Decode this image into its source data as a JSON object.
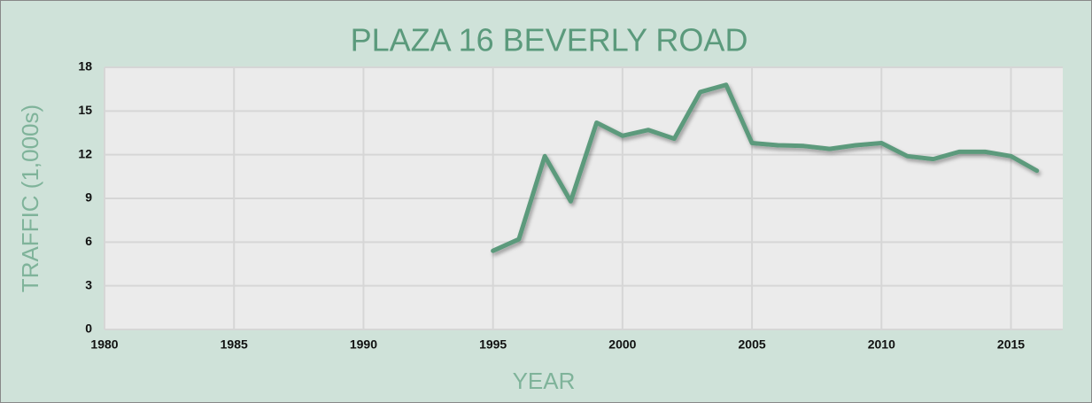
{
  "chart_data": {
    "type": "line",
    "title": "PLAZA 16 BEVERLY ROAD",
    "xlabel": "YEAR",
    "ylabel": "TRAFFIC (1,000s)",
    "x": [
      1995,
      1996,
      1997,
      1998,
      1999,
      2000,
      2001,
      2002,
      2003,
      2004,
      2005,
      2006,
      2007,
      2008,
      2009,
      2010,
      2011,
      2012,
      2013,
      2014,
      2015,
      2016
    ],
    "series": [
      {
        "name": "Traffic",
        "color": "#5b9a7c",
        "values": [
          5.4,
          6.2,
          11.9,
          8.8,
          14.2,
          13.3,
          13.7,
          13.1,
          16.3,
          16.8,
          12.8,
          12.65,
          12.6,
          12.4,
          12.65,
          12.8,
          11.9,
          11.7,
          12.2,
          12.2,
          11.9,
          10.9
        ]
      }
    ],
    "xlim": [
      1980,
      2017
    ],
    "xticks": [
      1980,
      1985,
      1990,
      1995,
      2000,
      2005,
      2010,
      2015
    ],
    "ylim": [
      0,
      18
    ],
    "yticks": [
      0,
      3,
      6,
      9,
      12,
      15,
      18
    ],
    "grid": true
  }
}
